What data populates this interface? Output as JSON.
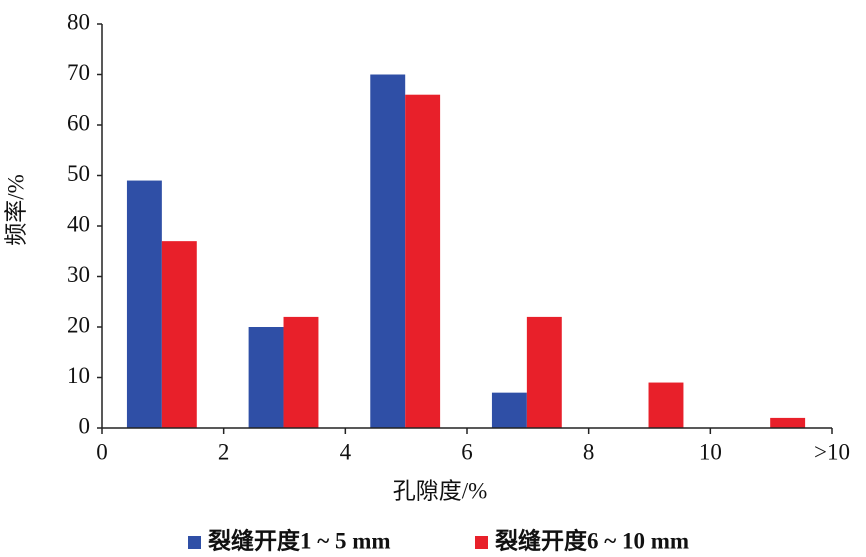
{
  "chart_data": {
    "type": "histogram",
    "xlabel": "孔隙度/%",
    "ylabel": "频率/%",
    "bins": [
      0,
      2,
      4,
      6,
      8,
      10,
      {
        "value": 12,
        "label": ">10"
      }
    ],
    "series": [
      {
        "name": "裂缝开度1 ~ 5 mm",
        "color": "#2f4fa6",
        "values": [
          49,
          20,
          70,
          7,
          0,
          0
        ]
      },
      {
        "name": "裂缝开度6 ~ 10 mm",
        "color": "#e8202a",
        "values": [
          37,
          22,
          66,
          22,
          9,
          2
        ]
      }
    ],
    "xlim": [
      0,
      12
    ],
    "ylim": [
      0,
      80
    ],
    "yticks": [
      0,
      10,
      20,
      30,
      40,
      50,
      60,
      70,
      80
    ],
    "legend": "bottom"
  }
}
